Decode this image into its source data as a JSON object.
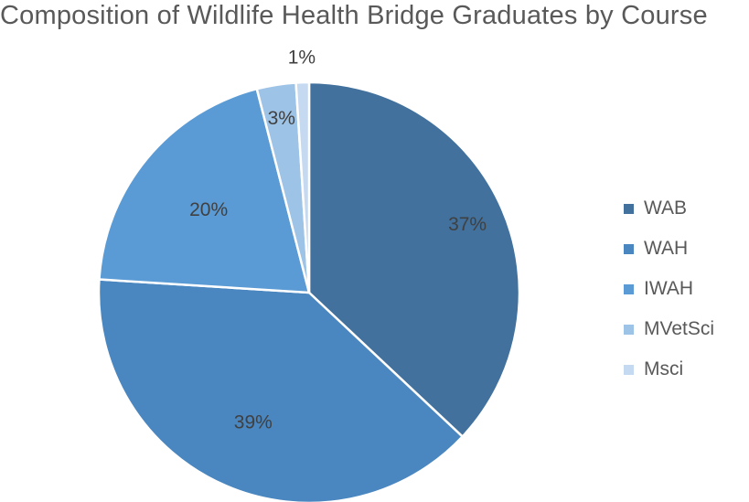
{
  "chart_data": {
    "type": "pie",
    "title": "Composition of Wildlife Health Bridge Graduates by Course",
    "categories": [
      "WAB",
      "WAH",
      "IWAH",
      "MVetSci",
      "Msci"
    ],
    "values": [
      37,
      39,
      20,
      3,
      1
    ],
    "labels": [
      "37%",
      "39%",
      "20%",
      "3%",
      "1%"
    ],
    "colors": [
      "#41719c",
      "#4a86bf",
      "#5b9bd5",
      "#9dc3e6",
      "#c5d9f1"
    ],
    "legend_position": "right"
  }
}
